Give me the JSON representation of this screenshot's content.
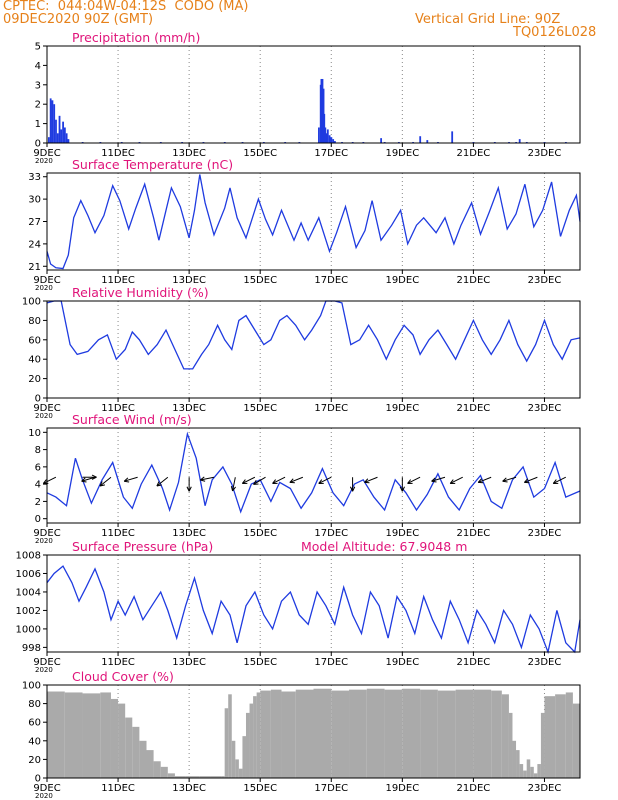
{
  "header": {
    "station": "CPTEC:  044:04W-04:12S  CODO (MA)",
    "run": "09DEC2020 90Z (GMT)",
    "grid_line": "Vertical Grid Line: 90Z",
    "code": "TQ0126L028",
    "model_altitude": "Model Altitude: 67.9048 m"
  },
  "x_axis": {
    "tick_labels": [
      "9DEC",
      "11DEC",
      "13DEC",
      "15DEC",
      "17DEC",
      "19DEC",
      "21DEC",
      "23DEC"
    ],
    "tick_days": [
      0,
      2,
      4,
      6,
      8,
      10,
      12,
      14
    ],
    "range_days": [
      0,
      15
    ],
    "year_label": "2020"
  },
  "colors": {
    "line": "#1f3be0",
    "bars": "#1f3be0",
    "cloud": "#aaaaaa",
    "title": "#e0147a",
    "header": "#e6811a"
  },
  "chart_data": [
    {
      "type": "bar",
      "title": "Precipitation (mm/h)",
      "ylim": [
        0,
        5
      ],
      "yticks": [
        0,
        1,
        2,
        3,
        4,
        5
      ],
      "x": [
        0.05,
        0.1,
        0.15,
        0.2,
        0.25,
        0.3,
        0.35,
        0.4,
        0.45,
        0.5,
        0.55,
        0.6,
        1.0,
        1.5,
        2.1,
        2.6,
        3.2,
        3.8,
        4.4,
        5.0,
        5.5,
        6.1,
        6.7,
        7.1,
        7.65,
        7.7,
        7.72,
        7.75,
        7.78,
        7.8,
        7.83,
        7.86,
        7.9,
        7.95,
        8.0,
        8.05,
        8.1,
        8.3,
        8.6,
        8.9,
        9.4,
        9.5,
        9.9,
        10.3,
        10.5,
        10.7,
        11.0,
        11.4,
        12.0,
        12.6,
        13.0,
        13.2,
        13.3,
        13.5,
        14.0,
        14.6
      ],
      "values": [
        0.3,
        2.3,
        2.2,
        2.0,
        1.2,
        0.5,
        1.4,
        0.7,
        1.1,
        0.8,
        0.5,
        0.2,
        0.05,
        0.05,
        0.05,
        0.05,
        0.05,
        0.05,
        0.05,
        0.05,
        0.05,
        0.05,
        0.05,
        0.05,
        0.8,
        3.0,
        3.3,
        3.3,
        2.8,
        1.5,
        0.8,
        0.5,
        0.7,
        0.4,
        0.3,
        0.2,
        0.1,
        0.05,
        0.05,
        0.05,
        0.25,
        0.05,
        0.05,
        0.05,
        0.35,
        0.15,
        0.05,
        0.6,
        0.05,
        0.05,
        0.05,
        0.05,
        0.2,
        0.05,
        0.05,
        0.05
      ]
    },
    {
      "type": "line",
      "title": "Surface Temperature (nC)",
      "ylim": [
        20.5,
        33.5
      ],
      "yticks": [
        21,
        24,
        27,
        30,
        33
      ],
      "x": [
        0,
        0.1,
        0.25,
        0.45,
        0.6,
        0.75,
        0.95,
        1.15,
        1.35,
        1.6,
        1.85,
        2.05,
        2.3,
        2.5,
        2.75,
        3.0,
        3.15,
        3.35,
        3.5,
        3.75,
        4.0,
        4.15,
        4.3,
        4.45,
        4.7,
        5.0,
        5.15,
        5.35,
        5.6,
        5.95,
        6.15,
        6.35,
        6.6,
        6.95,
        7.15,
        7.35,
        7.65,
        7.95,
        8.15,
        8.4,
        8.7,
        8.95,
        9.15,
        9.4,
        9.7,
        9.95,
        10.15,
        10.4,
        10.6,
        10.95,
        11.2,
        11.45,
        11.65,
        11.95,
        12.2,
        12.45,
        12.7,
        12.95,
        13.2,
        13.45,
        13.7,
        13.95,
        14.2,
        14.45,
        14.7,
        14.9,
        15.0
      ],
      "values": [
        23.0,
        21.3,
        20.8,
        20.7,
        22.5,
        27.5,
        29.8,
        27.8,
        25.5,
        27.8,
        31.8,
        29.8,
        26.0,
        28.8,
        32.0,
        27.5,
        24.5,
        28.5,
        31.5,
        29.0,
        24.8,
        28.5,
        33.3,
        29.5,
        25.2,
        28.8,
        31.5,
        27.5,
        24.8,
        30.0,
        27.3,
        25.2,
        28.5,
        24.5,
        26.8,
        24.5,
        27.5,
        23.0,
        25.5,
        29.0,
        23.5,
        25.8,
        29.8,
        24.5,
        26.5,
        28.5,
        24.0,
        26.5,
        27.5,
        25.5,
        27.5,
        24.0,
        26.5,
        29.5,
        25.3,
        28.3,
        31.5,
        26.0,
        28.0,
        32.0,
        26.3,
        28.5,
        32.3,
        25.0,
        28.5,
        30.5,
        27.0
      ]
    },
    {
      "type": "line",
      "title": "Relative Humidity (%)",
      "ylim": [
        0,
        100
      ],
      "yticks": [
        0,
        20,
        40,
        60,
        80,
        100
      ],
      "x": [
        0,
        0.2,
        0.4,
        0.65,
        0.85,
        1.15,
        1.45,
        1.7,
        1.95,
        2.2,
        2.4,
        2.6,
        2.85,
        3.1,
        3.35,
        3.6,
        3.85,
        4.1,
        4.35,
        4.55,
        4.8,
        5.0,
        5.2,
        5.4,
        5.6,
        5.85,
        6.1,
        6.3,
        6.55,
        6.75,
        7.0,
        7.25,
        7.45,
        7.7,
        7.85,
        8.1,
        8.3,
        8.55,
        8.8,
        9.05,
        9.3,
        9.55,
        9.8,
        10.05,
        10.3,
        10.5,
        10.75,
        11.0,
        11.25,
        11.5,
        11.75,
        12.0,
        12.25,
        12.5,
        12.75,
        13.0,
        13.25,
        13.5,
        13.75,
        14.0,
        14.25,
        14.5,
        14.75,
        15.0
      ],
      "values": [
        98,
        100,
        100,
        55,
        45,
        48,
        60,
        65,
        40,
        50,
        68,
        60,
        45,
        55,
        70,
        50,
        30,
        30,
        45,
        55,
        75,
        60,
        50,
        80,
        85,
        70,
        55,
        60,
        80,
        85,
        75,
        60,
        70,
        85,
        100,
        100,
        98,
        55,
        60,
        75,
        60,
        40,
        60,
        75,
        65,
        45,
        60,
        70,
        55,
        40,
        60,
        80,
        60,
        45,
        60,
        80,
        55,
        38,
        55,
        80,
        55,
        40,
        60,
        62
      ]
    },
    {
      "type": "line",
      "title": "Surface Wind (m/s)",
      "ylim": [
        -0.5,
        10.5
      ],
      "yticks": [
        0,
        2,
        4,
        6,
        8,
        10
      ],
      "x": [
        0,
        0.25,
        0.55,
        0.8,
        1.0,
        1.25,
        1.55,
        1.85,
        2.15,
        2.4,
        2.65,
        2.95,
        3.25,
        3.45,
        3.7,
        3.95,
        4.2,
        4.45,
        4.65,
        4.95,
        5.2,
        5.45,
        5.75,
        6.0,
        6.3,
        6.55,
        6.85,
        7.15,
        7.45,
        7.75,
        8.05,
        8.35,
        8.65,
        8.9,
        9.2,
        9.5,
        9.8,
        10.1,
        10.4,
        10.7,
        11.0,
        11.3,
        11.6,
        11.9,
        12.2,
        12.5,
        12.8,
        13.1,
        13.4,
        13.7,
        14.0,
        14.3,
        14.6,
        15.0
      ],
      "values": [
        3.0,
        2.5,
        1.5,
        7.0,
        4.5,
        1.8,
        4.5,
        6.5,
        2.5,
        1.2,
        4.0,
        6.2,
        3.5,
        1.0,
        4.2,
        9.8,
        7.0,
        1.5,
        4.5,
        6.0,
        4.0,
        0.8,
        4.0,
        4.5,
        2.0,
        4.2,
        3.5,
        1.2,
        3.0,
        5.8,
        3.0,
        1.5,
        4.0,
        4.5,
        2.5,
        1.0,
        4.5,
        3.0,
        1.0,
        2.8,
        5.2,
        2.5,
        1.0,
        3.5,
        5.0,
        2.0,
        1.2,
        4.5,
        6.0,
        2.5,
        3.5,
        6.5,
        2.5,
        3.2
      ],
      "arrows": [
        {
          "x": 0.25,
          "u": -1,
          "v": -0.5
        },
        {
          "x": 1.0,
          "u": 1,
          "v": 0
        },
        {
          "x": 1.35,
          "u": -1,
          "v": -0.3
        },
        {
          "x": 1.8,
          "u": -1,
          "v": -0.8
        },
        {
          "x": 2.55,
          "u": -1,
          "v": -0.3
        },
        {
          "x": 3.4,
          "u": -1,
          "v": -0.8
        },
        {
          "x": 4.0,
          "u": 0,
          "v": -1
        },
        {
          "x": 4.7,
          "u": -1,
          "v": -0.2
        },
        {
          "x": 5.3,
          "u": -0.2,
          "v": -1
        },
        {
          "x": 5.85,
          "u": -1,
          "v": -0.5
        },
        {
          "x": 6.15,
          "u": -1,
          "v": -0.6
        },
        {
          "x": 6.7,
          "u": -1,
          "v": -0.5
        },
        {
          "x": 7.2,
          "u": -1,
          "v": -0.4
        },
        {
          "x": 8.0,
          "u": -1,
          "v": -0.5
        },
        {
          "x": 8.6,
          "u": 0,
          "v": -1
        },
        {
          "x": 9.3,
          "u": -1,
          "v": -0.4
        },
        {
          "x": 10.0,
          "u": 0,
          "v": -1
        },
        {
          "x": 10.5,
          "u": -1,
          "v": -0.5
        },
        {
          "x": 11.2,
          "u": -1,
          "v": -0.3
        },
        {
          "x": 11.7,
          "u": -1,
          "v": -0.5
        },
        {
          "x": 12.5,
          "u": -1,
          "v": -0.4
        },
        {
          "x": 13.2,
          "u": -1,
          "v": -0.3
        },
        {
          "x": 13.8,
          "u": -1,
          "v": -0.4
        },
        {
          "x": 14.6,
          "u": -1,
          "v": -0.5
        }
      ]
    },
    {
      "type": "line",
      "title": "Surface Pressure (hPa)",
      "ylim": [
        997.5,
        1008
      ],
      "yticks": [
        998,
        1000,
        1002,
        1004,
        1006,
        1008
      ],
      "x": [
        0,
        0.2,
        0.45,
        0.7,
        0.9,
        1.1,
        1.35,
        1.6,
        1.8,
        2.0,
        2.2,
        2.45,
        2.7,
        2.95,
        3.2,
        3.4,
        3.65,
        3.9,
        4.15,
        4.4,
        4.65,
        4.9,
        5.15,
        5.35,
        5.6,
        5.85,
        6.1,
        6.35,
        6.6,
        6.85,
        7.1,
        7.35,
        7.6,
        7.85,
        8.1,
        8.35,
        8.6,
        8.85,
        9.1,
        9.35,
        9.6,
        9.85,
        10.1,
        10.35,
        10.6,
        10.85,
        11.1,
        11.35,
        11.6,
        11.85,
        12.1,
        12.35,
        12.6,
        12.85,
        13.1,
        13.35,
        13.6,
        13.85,
        14.1,
        14.35,
        14.6,
        14.85,
        15.0
      ],
      "values": [
        1005.0,
        1006.0,
        1006.8,
        1005.0,
        1003.0,
        1004.5,
        1006.5,
        1004.0,
        1001.0,
        1003.0,
        1001.5,
        1003.5,
        1001.0,
        1002.5,
        1004.0,
        1002.0,
        999.0,
        1002.5,
        1005.5,
        1002.0,
        999.5,
        1003.0,
        1001.5,
        998.5,
        1002.5,
        1004.0,
        1001.5,
        1000.0,
        1003.0,
        1004.0,
        1001.5,
        1000.5,
        1004.0,
        1002.5,
        1000.5,
        1004.5,
        1001.5,
        999.5,
        1004.0,
        1002.5,
        999.0,
        1003.5,
        1002.0,
        999.5,
        1003.5,
        1001.0,
        999.0,
        1003.0,
        1001.0,
        998.5,
        1002.0,
        1000.5,
        998.5,
        1002.0,
        1000.5,
        998.0,
        1001.5,
        1000.0,
        997.5,
        1002.0,
        998.5,
        997.5,
        1001.0
      ]
    },
    {
      "type": "area",
      "title": "Cloud Cover (%)",
      "ylim": [
        0,
        100
      ],
      "yticks": [
        0,
        20,
        40,
        60,
        80,
        100
      ],
      "x": [
        0,
        0.5,
        1.0,
        1.5,
        1.8,
        2.0,
        2.2,
        2.4,
        2.6,
        2.8,
        3.0,
        3.2,
        3.4,
        3.6,
        3.8,
        3.9,
        4.0,
        4.3,
        4.6,
        4.9,
        5.0,
        5.1,
        5.2,
        5.3,
        5.4,
        5.5,
        5.6,
        5.7,
        5.8,
        5.9,
        6.0,
        6.3,
        6.6,
        7.0,
        7.5,
        8.0,
        8.5,
        9.0,
        9.5,
        10.0,
        10.5,
        11.0,
        11.5,
        12.0,
        12.5,
        12.8,
        13.0,
        13.1,
        13.2,
        13.3,
        13.4,
        13.5,
        13.6,
        13.7,
        13.8,
        13.9,
        14.0,
        14.3,
        14.6,
        14.8,
        15.0
      ],
      "values": [
        93,
        92,
        91,
        92,
        85,
        80,
        65,
        55,
        40,
        30,
        18,
        12,
        5,
        2,
        2,
        2,
        2,
        2,
        2,
        2,
        75,
        90,
        40,
        20,
        10,
        45,
        70,
        80,
        88,
        92,
        94,
        95,
        93,
        95,
        96,
        94,
        95,
        96,
        95,
        96,
        95,
        94,
        95,
        95,
        94,
        90,
        70,
        40,
        30,
        15,
        8,
        20,
        12,
        5,
        15,
        70,
        88,
        90,
        92,
        80,
        92
      ]
    }
  ]
}
